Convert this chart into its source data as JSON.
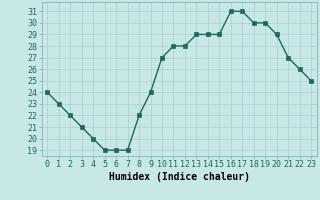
{
  "x": [
    0,
    1,
    2,
    3,
    4,
    5,
    6,
    7,
    8,
    9,
    10,
    11,
    12,
    13,
    14,
    15,
    16,
    17,
    18,
    19,
    20,
    21,
    22,
    23
  ],
  "y": [
    24,
    23,
    22,
    21,
    20,
    19,
    19,
    19,
    22,
    24,
    27,
    28,
    28,
    29,
    29,
    29,
    31,
    31,
    30,
    30,
    29,
    27,
    26,
    25
  ],
  "line_color": "#1a6b5a",
  "marker_color": "#1a6b5a",
  "bg_color": "#c8e8e8",
  "grid_color": "#aacece",
  "xlabel": "Humidex (Indice chaleur)",
  "xlim": [
    -0.5,
    23.5
  ],
  "ylim": [
    18.5,
    31.8
  ],
  "yticks": [
    19,
    20,
    21,
    22,
    23,
    24,
    25,
    26,
    27,
    28,
    29,
    30,
    31
  ],
  "xtick_labels": [
    "0",
    "1",
    "2",
    "3",
    "4",
    "5",
    "6",
    "7",
    "8",
    "9",
    "10",
    "11",
    "12",
    "13",
    "14",
    "15",
    "16",
    "17",
    "18",
    "19",
    "20",
    "21",
    "22",
    "23"
  ],
  "xlabel_fontsize": 7,
  "tick_fontsize": 6,
  "linewidth": 1.0,
  "markersize": 2.5
}
